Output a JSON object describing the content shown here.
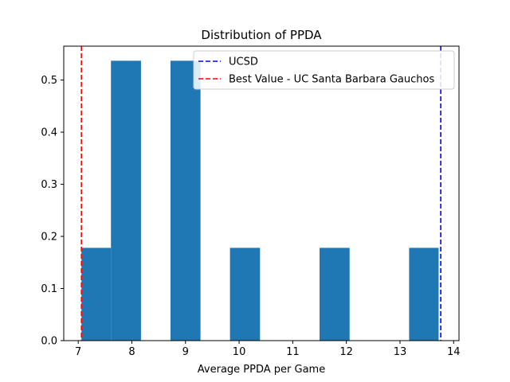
{
  "chart_data": {
    "type": "bar",
    "title": "Distribution of PPDA",
    "xlabel": "Average PPDA per Game",
    "ylabel": "",
    "xlim": [
      6.73,
      14.1
    ],
    "ylim": [
      0,
      0.565
    ],
    "xticks": [
      7,
      8,
      9,
      10,
      11,
      12,
      13,
      14
    ],
    "yticks": [
      0.0,
      0.1,
      0.2,
      0.3,
      0.4,
      0.5
    ],
    "bar_color": "#1f77b4",
    "bins": [
      {
        "x0": 7.06,
        "x1": 7.61,
        "value": 0.178
      },
      {
        "x0": 7.61,
        "x1": 8.17,
        "value": 0.537
      },
      {
        "x0": 8.17,
        "x1": 8.72,
        "value": 0.0
      },
      {
        "x0": 8.72,
        "x1": 9.28,
        "value": 0.537
      },
      {
        "x0": 9.28,
        "x1": 9.83,
        "value": 0.0
      },
      {
        "x0": 9.83,
        "x1": 10.39,
        "value": 0.178
      },
      {
        "x0": 10.39,
        "x1": 10.95,
        "value": 0.0
      },
      {
        "x0": 10.95,
        "x1": 11.5,
        "value": 0.0
      },
      {
        "x0": 11.5,
        "x1": 12.06,
        "value": 0.178
      },
      {
        "x0": 12.06,
        "x1": 12.61,
        "value": 0.0
      },
      {
        "x0": 12.61,
        "x1": 13.17,
        "value": 0.0
      },
      {
        "x0": 13.17,
        "x1": 13.72,
        "value": 0.178
      }
    ],
    "reference_lines": [
      {
        "name": "UCSD",
        "x": 13.76,
        "color": "#0000ff",
        "style": "dashed"
      },
      {
        "name": "Best Value - UC Santa Barbara Gauchos",
        "x": 7.06,
        "color": "#ff0000",
        "style": "dashed"
      }
    ],
    "legend_position": "top-right",
    "grid": false
  }
}
